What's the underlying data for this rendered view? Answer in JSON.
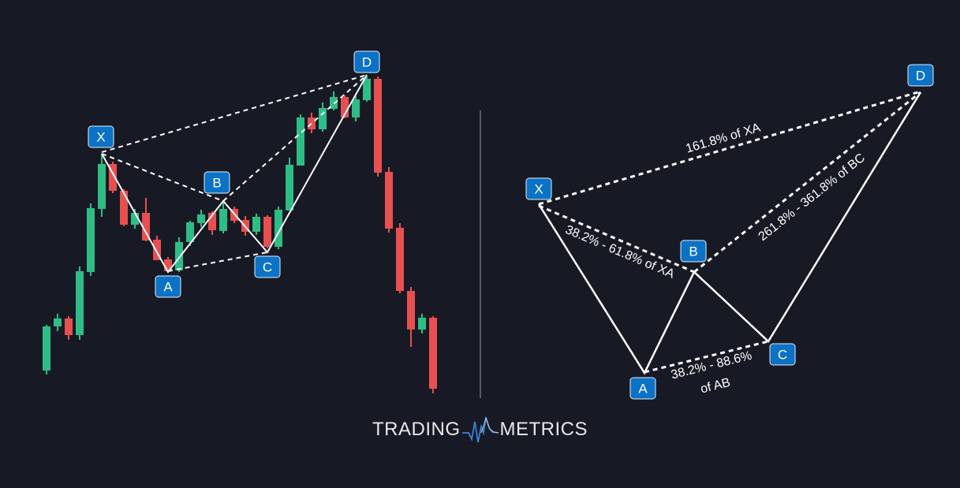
{
  "colors": {
    "background": "#171a24",
    "bullish_candle": "#2ebd85",
    "bearish_candle": "#e84f51",
    "point_label": "#0b72c6",
    "lines": "#ffffff",
    "divider": "#6b6e78"
  },
  "chart_pattern": {
    "points": [
      "X",
      "A",
      "B",
      "C",
      "D"
    ]
  },
  "schematic": {
    "points": [
      "X",
      "A",
      "B",
      "C",
      "D"
    ],
    "annotations": {
      "xd": "161.8% of XA",
      "xb": "38.2% - 61.8% of XA",
      "bd": "261.8% - 361.8% of BC",
      "ac_line1": "38.2% - 88.6%",
      "ac_line2": "of AB"
    }
  },
  "logo": {
    "left": "TRADING",
    "right": "METRICS"
  }
}
